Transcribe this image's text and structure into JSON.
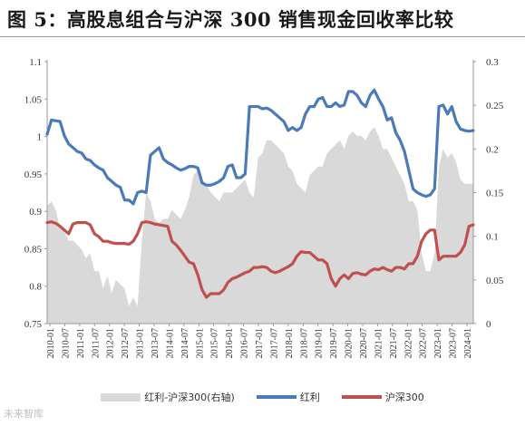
{
  "header": {
    "title": "图 5：高股息组合与沪深 300 销售现金回收率比较"
  },
  "watermark": "未来智库",
  "chart_data": {
    "type": "line",
    "left_axis": {
      "min": 0.75,
      "max": 1.1,
      "step": 0.05,
      "ticks": [
        "1.1",
        "1.05",
        "1",
        "0.95",
        "0.9",
        "0.85",
        "0.8",
        "0.75"
      ]
    },
    "right_axis": {
      "min": 0,
      "max": 0.3,
      "step": 0.05,
      "ticks": [
        "0.3",
        "0.25",
        "0.2",
        "0.15",
        "0.1",
        "0.05",
        "0"
      ]
    },
    "x_tick_labels": [
      "2010-01",
      "2010-07",
      "2011-01",
      "2011-07",
      "2012-01",
      "2012-07",
      "2013-01",
      "2013-07",
      "2014-01",
      "2014-07",
      "2015-01",
      "2015-07",
      "2016-01",
      "2016-07",
      "2017-01",
      "2017-07",
      "2018-01",
      "2018-07",
      "2019-01",
      "2019-07",
      "2020-01",
      "2020-07",
      "2021-01",
      "2021-07",
      "2022-01",
      "2022-07",
      "2023-01",
      "2023-07",
      "2024-01"
    ],
    "legend": [
      "红利-沪深300(右轴)",
      "红利",
      "沪深300"
    ],
    "colors": {
      "area": "#d9d9d9",
      "dividend": "#4a7ab8",
      "hs300": "#c0504d"
    },
    "grid": false,
    "series": [
      {
        "name": "红利-沪深300(右轴)",
        "axis": "right",
        "kind": "area",
        "values": [
          0.135,
          0.14,
          0.13,
          0.11,
          0.105,
          0.095,
          0.095,
          0.09,
          0.085,
          0.075,
          0.08,
          0.06,
          0.06,
          0.04,
          0.055,
          0.035,
          0.05,
          0.045,
          0.04,
          0.02,
          0.03,
          0.02,
          0.095,
          0.15,
          0.14,
          0.12,
          0.115,
          0.12,
          0.12,
          0.13,
          0.125,
          0.12,
          0.13,
          0.145,
          0.17,
          0.175,
          0.165,
          0.16,
          0.15,
          0.145,
          0.14,
          0.15,
          0.15,
          0.15,
          0.155,
          0.16,
          0.165,
          0.15,
          0.145,
          0.19,
          0.195,
          0.21,
          0.21,
          0.205,
          0.2,
          0.195,
          0.18,
          0.175,
          0.16,
          0.155,
          0.15,
          0.17,
          0.175,
          0.18,
          0.18,
          0.195,
          0.2,
          0.205,
          0.21,
          0.2,
          0.215,
          0.22,
          0.215,
          0.215,
          0.21,
          0.22,
          0.225,
          0.215,
          0.2,
          0.2,
          0.19,
          0.18,
          0.17,
          0.16,
          0.14,
          0.14,
          0.13,
          0.08,
          0.06,
          0.06,
          0.08,
          0.18,
          0.2,
          0.19,
          0.195,
          0.185,
          0.165,
          0.16,
          0.16,
          0.16
        ]
      },
      {
        "name": "红利",
        "axis": "left",
        "kind": "line",
        "values": [
          1.003,
          1.022,
          1.021,
          1.02,
          1.001,
          0.99,
          0.985,
          0.98,
          0.978,
          0.97,
          0.968,
          0.962,
          0.958,
          0.955,
          0.945,
          0.94,
          0.935,
          0.932,
          0.915,
          0.915,
          0.91,
          0.925,
          0.927,
          0.925,
          0.975,
          0.98,
          0.985,
          0.97,
          0.965,
          0.962,
          0.958,
          0.955,
          0.957,
          0.96,
          0.96,
          0.958,
          0.938,
          0.935,
          0.935,
          0.937,
          0.94,
          0.945,
          0.96,
          0.962,
          0.945,
          0.945,
          0.95,
          1.04,
          1.04,
          1.04,
          1.037,
          1.038,
          1.035,
          1.03,
          1.025,
          1.02,
          1.008,
          1.012,
          1.008,
          1.012,
          1.03,
          1.04,
          1.04,
          1.05,
          1.052,
          1.04,
          1.04,
          1.045,
          1.04,
          1.042,
          1.06,
          1.06,
          1.055,
          1.045,
          1.04,
          1.055,
          1.062,
          1.05,
          1.04,
          1.022,
          1.025,
          1.005,
          0.995,
          0.98,
          0.955,
          0.93,
          0.925,
          0.922,
          0.92,
          0.922,
          0.93,
          1.04,
          1.042,
          1.03,
          1.04,
          1.02,
          1.01,
          1.008,
          1.007,
          1.008
        ]
      },
      {
        "name": "沪深300",
        "axis": "left",
        "kind": "line",
        "values": [
          0.885,
          0.886,
          0.884,
          0.88,
          0.875,
          0.87,
          0.883,
          0.885,
          0.885,
          0.885,
          0.882,
          0.87,
          0.866,
          0.86,
          0.86,
          0.858,
          0.857,
          0.857,
          0.857,
          0.856,
          0.86,
          0.87,
          0.885,
          0.886,
          0.885,
          0.883,
          0.882,
          0.881,
          0.88,
          0.86,
          0.855,
          0.848,
          0.84,
          0.832,
          0.83,
          0.815,
          0.795,
          0.785,
          0.79,
          0.79,
          0.79,
          0.795,
          0.805,
          0.81,
          0.812,
          0.815,
          0.818,
          0.82,
          0.825,
          0.825,
          0.826,
          0.825,
          0.82,
          0.818,
          0.82,
          0.823,
          0.826,
          0.83,
          0.84,
          0.846,
          0.845,
          0.845,
          0.84,
          0.835,
          0.835,
          0.83,
          0.81,
          0.8,
          0.81,
          0.815,
          0.81,
          0.817,
          0.818,
          0.816,
          0.815,
          0.82,
          0.823,
          0.822,
          0.825,
          0.822,
          0.82,
          0.825,
          0.825,
          0.823,
          0.83,
          0.83,
          0.84,
          0.86,
          0.87,
          0.875,
          0.875,
          0.835,
          0.84,
          0.84,
          0.84,
          0.84,
          0.845,
          0.855,
          0.88,
          0.882
        ]
      }
    ]
  }
}
